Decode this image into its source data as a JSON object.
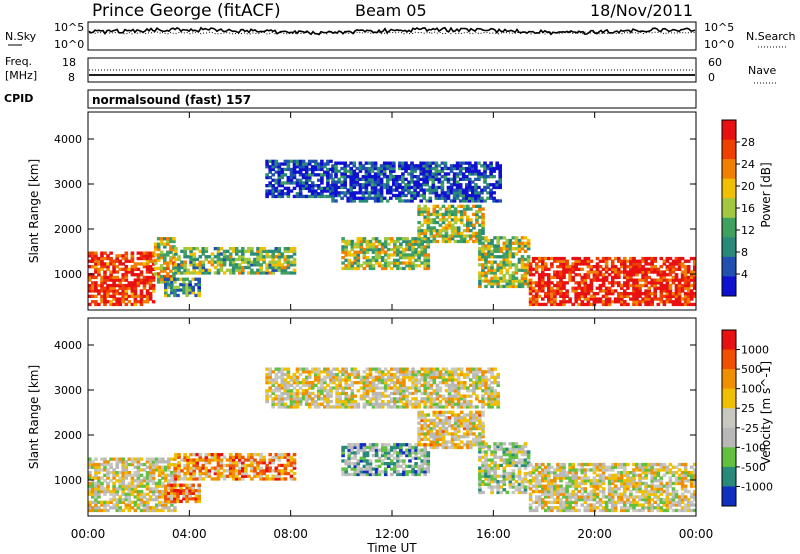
{
  "header": {
    "station": "Prince George (fitACF)",
    "beam": "Beam 05",
    "date": "18/Nov/2011"
  },
  "top_panels": {
    "nsky_label": "N.Sky",
    "nsky_ticks": [
      "10^5",
      "10^0"
    ],
    "nsearch_label": "N.Search",
    "nsearch_ticks": [
      "10^5",
      "10^0"
    ],
    "freq_label_1": "Freq.",
    "freq_label_2": "[MHz]",
    "freq_ticks": [
      "18",
      "8"
    ],
    "nave_label": "Nave",
    "nave_ticks": [
      "60",
      "0"
    ],
    "cpid_label": "CPID",
    "cpid_value": "normalsound (fast) 157"
  },
  "colors": {
    "power_scale": [
      "#1010d0",
      "#2050b0",
      "#2a8a7a",
      "#40a060",
      "#a0c840",
      "#f0c000",
      "#f08000",
      "#f04000",
      "#e81010"
    ],
    "velocity_scale": [
      "#e81010",
      "#f05000",
      "#f09000",
      "#f0c000",
      "#c8c8c0",
      "#b8b8b8",
      "#60c040",
      "#2a8a7a",
      "#1030c0"
    ]
  },
  "chart_data": [
    {
      "type": "heatmap",
      "name": "power-panel",
      "ylabel": "Slant Range [km]",
      "yticks": [
        "4000",
        "3000",
        "2000",
        "1000"
      ],
      "ytick_values": [
        4000,
        3000,
        2000,
        1000
      ],
      "ylim": [
        200,
        4600
      ],
      "xlim": [
        0,
        24
      ],
      "colorbar_label": "Power [dB]",
      "colorbar_ticks": [
        "28",
        "24",
        "20",
        "16",
        "12",
        "8",
        "4"
      ],
      "colorbar_range": [
        0,
        32
      ],
      "regions": [
        {
          "t0": 0.0,
          "t1": 2.6,
          "r0": 300,
          "r1": 1500,
          "level": 0.9
        },
        {
          "t0": 2.6,
          "t1": 3.4,
          "r0": 800,
          "r1": 1800,
          "level": 0.55
        },
        {
          "t0": 3.4,
          "t1": 8.2,
          "r0": 1000,
          "r1": 1600,
          "level": 0.45
        },
        {
          "t0": 3.0,
          "t1": 4.4,
          "r0": 500,
          "r1": 900,
          "level": 0.35
        },
        {
          "t0": 7.0,
          "t1": 9.6,
          "r0": 2700,
          "r1": 3500,
          "level": 0.1
        },
        {
          "t0": 9.6,
          "t1": 16.2,
          "r0": 2600,
          "r1": 3500,
          "level": 0.12
        },
        {
          "t0": 10.0,
          "t1": 13.4,
          "r0": 1100,
          "r1": 1800,
          "level": 0.5
        },
        {
          "t0": 13.0,
          "t1": 15.6,
          "r0": 1700,
          "r1": 2500,
          "level": 0.5
        },
        {
          "t0": 15.4,
          "t1": 17.4,
          "r0": 700,
          "r1": 1800,
          "level": 0.5
        },
        {
          "t0": 17.4,
          "t1": 24.0,
          "r0": 300,
          "r1": 1350,
          "level": 0.92
        }
      ]
    },
    {
      "type": "heatmap",
      "name": "velocity-panel",
      "ylabel": "Slant Range [km]",
      "yticks": [
        "4000",
        "3000",
        "2000",
        "1000"
      ],
      "ytick_values": [
        4000,
        3000,
        2000,
        1000
      ],
      "ylim": [
        200,
        4600
      ],
      "xlim": [
        0,
        24
      ],
      "xlabel": "Time UT",
      "xticks": [
        "00:00",
        "04:00",
        "08:00",
        "12:00",
        "16:00",
        "20:00",
        "00:00"
      ],
      "xtick_values": [
        0,
        4,
        8,
        12,
        16,
        20,
        24
      ],
      "colorbar_label": "Velocity [m s^-1]",
      "colorbar_ticks": [
        "1000",
        "500",
        "100",
        "25",
        "-25",
        "-100",
        "-500",
        "-1000"
      ],
      "regions": [
        {
          "t0": 0.0,
          "t1": 3.4,
          "r0": 300,
          "r1": 1500,
          "level": 0.5
        },
        {
          "t0": 3.4,
          "t1": 8.2,
          "r0": 1000,
          "r1": 1600,
          "level": 0.3
        },
        {
          "t0": 3.0,
          "t1": 4.4,
          "r0": 500,
          "r1": 900,
          "level": 0.3
        },
        {
          "t0": 7.0,
          "t1": 16.2,
          "r0": 2600,
          "r1": 3500,
          "level": 0.5
        },
        {
          "t0": 10.0,
          "t1": 13.4,
          "r0": 1100,
          "r1": 1800,
          "level": 0.7
        },
        {
          "t0": 13.0,
          "t1": 15.6,
          "r0": 1700,
          "r1": 2500,
          "level": 0.45
        },
        {
          "t0": 15.4,
          "t1": 17.4,
          "r0": 700,
          "r1": 1800,
          "level": 0.6
        },
        {
          "t0": 17.4,
          "t1": 24.0,
          "r0": 300,
          "r1": 1350,
          "level": 0.5
        }
      ]
    }
  ]
}
